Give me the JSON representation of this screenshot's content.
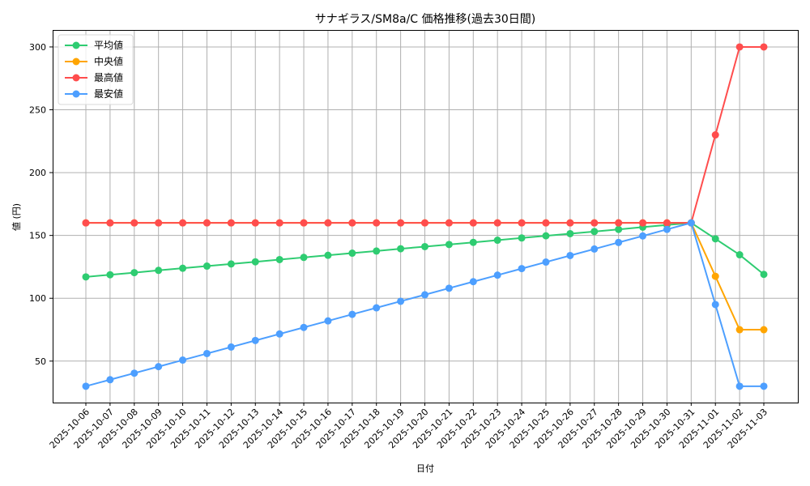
{
  "chart_data": {
    "type": "line",
    "title": "サナギラス/SM8a/C 価格推移(過去30日間)",
    "xlabel": "日付",
    "ylabel": "値 (円)",
    "ylim": [
      17,
      313.5
    ],
    "yticks": [
      50,
      100,
      150,
      200,
      250,
      300
    ],
    "grid": true,
    "legend_position": "upper left",
    "categories": [
      "2025-10-06",
      "2025-10-07",
      "2025-10-08",
      "2025-10-09",
      "2025-10-10",
      "2025-10-11",
      "2025-10-12",
      "2025-10-13",
      "2025-10-14",
      "2025-10-15",
      "2025-10-16",
      "2025-10-17",
      "2025-10-18",
      "2025-10-19",
      "2025-10-20",
      "2025-10-21",
      "2025-10-22",
      "2025-10-23",
      "2025-10-24",
      "2025-10-25",
      "2025-10-26",
      "2025-10-27",
      "2025-10-28",
      "2025-10-29",
      "2025-10-30",
      "2025-10-31",
      "2025-11-01",
      "2025-11-02",
      "2025-11-03"
    ],
    "series": [
      {
        "name": "平均値",
        "color": "#2ecc71",
        "values": [
          117.0,
          118.7,
          120.4,
          122.2,
          123.9,
          125.6,
          127.3,
          129.0,
          130.8,
          132.5,
          134.2,
          135.9,
          137.6,
          139.4,
          141.1,
          142.8,
          144.5,
          146.2,
          148.0,
          149.7,
          151.4,
          153.1,
          154.8,
          156.6,
          158.3,
          160.0,
          147.3,
          134.6,
          119.0
        ]
      },
      {
        "name": "中央値",
        "color": "#ffa500",
        "values": [
          160,
          160,
          160,
          160,
          160,
          160,
          160,
          160,
          160,
          160,
          160,
          160,
          160,
          160,
          160,
          160,
          160,
          160,
          160,
          160,
          160,
          160,
          160,
          160,
          160,
          160,
          117.5,
          75,
          75
        ]
      },
      {
        "name": "最高値",
        "color": "#ff4d4d",
        "values": [
          160,
          160,
          160,
          160,
          160,
          160,
          160,
          160,
          160,
          160,
          160,
          160,
          160,
          160,
          160,
          160,
          160,
          160,
          160,
          160,
          160,
          160,
          160,
          160,
          160,
          160,
          230,
          300,
          300
        ]
      },
      {
        "name": "最安値",
        "color": "#4d9fff",
        "values": [
          30.0,
          35.2,
          40.4,
          45.6,
          50.8,
          56.0,
          61.2,
          66.4,
          71.6,
          76.8,
          82.0,
          87.2,
          92.4,
          97.6,
          102.8,
          108.0,
          113.2,
          118.4,
          123.6,
          128.8,
          134.0,
          139.2,
          144.4,
          149.6,
          154.8,
          160.0,
          95,
          30,
          30
        ]
      }
    ]
  }
}
